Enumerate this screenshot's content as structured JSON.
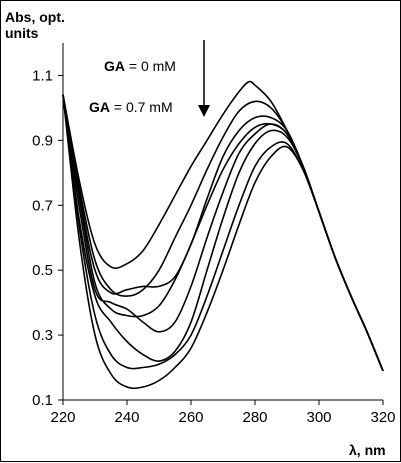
{
  "chart_data": {
    "type": "line",
    "title": "",
    "xlabel": "λ, nm",
    "ylabel_line1": "Abs, opt.",
    "ylabel_line2": "units",
    "xlim": [
      220,
      320
    ],
    "ylim": [
      0.1,
      1.2
    ],
    "x_ticks": [
      220,
      240,
      260,
      280,
      300,
      320
    ],
    "y_ticks": [
      0.1,
      0.3,
      0.5,
      0.7,
      0.9,
      1.1
    ],
    "x_tick_labels": [
      "220",
      "240",
      "260",
      "280",
      "300",
      "320"
    ],
    "y_tick_labels": [
      "0.1",
      "0.3",
      "0.5",
      "0.7",
      "0.9",
      "1.1"
    ],
    "grid": false,
    "line_color": "#000000",
    "annotations": {
      "top_bold": "GA",
      "top_rest": " = 0 mM",
      "bottom_bold": "GA",
      "bottom_rest": " = 0.7 mM"
    },
    "series": [
      {
        "x": [
          220,
          225,
          230,
          235,
          240,
          245,
          250,
          255,
          260,
          265,
          270,
          275,
          278,
          280,
          285,
          290,
          295,
          300,
          305,
          310,
          315,
          320
        ],
        "y": [
          1.04,
          0.78,
          0.58,
          0.51,
          0.52,
          0.56,
          0.64,
          0.73,
          0.82,
          0.9,
          0.98,
          1.05,
          1.08,
          1.07,
          1.02,
          0.93,
          0.82,
          0.68,
          0.54,
          0.42,
          0.31,
          0.19
        ]
      },
      {
        "x": [
          220,
          225,
          230,
          235,
          240,
          245,
          250,
          255,
          260,
          265,
          270,
          275,
          280,
          285,
          290,
          295,
          300,
          305,
          310,
          315,
          320
        ],
        "y": [
          1.04,
          0.76,
          0.53,
          0.44,
          0.42,
          0.44,
          0.5,
          0.6,
          0.7,
          0.81,
          0.91,
          0.99,
          1.02,
          1.0,
          0.93,
          0.82,
          0.68,
          0.54,
          0.42,
          0.31,
          0.19
        ]
      },
      {
        "x": [
          220,
          225,
          230,
          235,
          240,
          245,
          250,
          255,
          260,
          265,
          270,
          275,
          280,
          285,
          290,
          295,
          300,
          305,
          310,
          315,
          320
        ],
        "y": [
          1.04,
          0.74,
          0.5,
          0.43,
          0.44,
          0.45,
          0.45,
          0.48,
          0.58,
          0.72,
          0.85,
          0.93,
          0.97,
          0.97,
          0.93,
          0.82,
          0.68,
          0.54,
          0.42,
          0.31,
          0.19
        ]
      },
      {
        "x": [
          220,
          225,
          230,
          235,
          240,
          245,
          250,
          255,
          260,
          265,
          270,
          275,
          280,
          285,
          290,
          295,
          300,
          305,
          310,
          315,
          320
        ],
        "y": [
          1.04,
          0.73,
          0.46,
          0.38,
          0.36,
          0.36,
          0.39,
          0.47,
          0.58,
          0.7,
          0.81,
          0.89,
          0.94,
          0.95,
          0.92,
          0.82,
          0.68,
          0.54,
          0.42,
          0.31,
          0.19
        ]
      },
      {
        "x": [
          220,
          225,
          230,
          235,
          240,
          245,
          250,
          255,
          260,
          265,
          270,
          275,
          280,
          285,
          290,
          295,
          300,
          305,
          310,
          315,
          320
        ],
        "y": [
          1.04,
          0.7,
          0.44,
          0.4,
          0.38,
          0.34,
          0.31,
          0.34,
          0.45,
          0.6,
          0.74,
          0.86,
          0.92,
          0.95,
          0.92,
          0.82,
          0.68,
          0.54,
          0.42,
          0.31,
          0.19
        ]
      },
      {
        "x": [
          220,
          225,
          230,
          235,
          240,
          245,
          250,
          255,
          260,
          265,
          270,
          275,
          280,
          285,
          290,
          295,
          300,
          305,
          310,
          315,
          320
        ],
        "y": [
          1.04,
          0.66,
          0.42,
          0.34,
          0.28,
          0.24,
          0.22,
          0.25,
          0.34,
          0.5,
          0.66,
          0.8,
          0.89,
          0.93,
          0.91,
          0.82,
          0.68,
          0.54,
          0.42,
          0.31,
          0.19
        ]
      },
      {
        "x": [
          220,
          225,
          230,
          235,
          240,
          245,
          250,
          255,
          260,
          265,
          270,
          275,
          280,
          285,
          290,
          295,
          300,
          305,
          310,
          315,
          320
        ],
        "y": [
          1.04,
          0.64,
          0.36,
          0.24,
          0.2,
          0.2,
          0.21,
          0.24,
          0.3,
          0.42,
          0.56,
          0.7,
          0.82,
          0.88,
          0.89,
          0.81,
          0.68,
          0.54,
          0.42,
          0.31,
          0.19
        ]
      },
      {
        "x": [
          220,
          225,
          230,
          235,
          240,
          245,
          250,
          255,
          260,
          265,
          270,
          275,
          280,
          285,
          290,
          295,
          300,
          305,
          310,
          315,
          320
        ],
        "y": [
          1.04,
          0.6,
          0.3,
          0.18,
          0.14,
          0.14,
          0.16,
          0.2,
          0.26,
          0.37,
          0.5,
          0.64,
          0.77,
          0.85,
          0.88,
          0.81,
          0.68,
          0.54,
          0.42,
          0.31,
          0.19
        ]
      }
    ]
  }
}
